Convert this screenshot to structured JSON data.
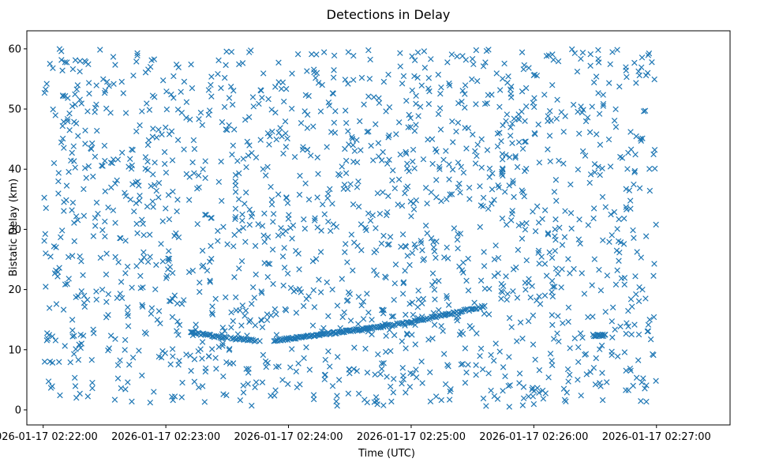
{
  "chart_data": {
    "type": "scatter",
    "title": "Detections in Delay",
    "xlabel": "Time (UTC)",
    "ylabel": "Bistatic Delay (km)",
    "marker": "x",
    "color": "#1f77b4",
    "xlim_seconds": [
      -8,
      336
    ],
    "ylim": [
      -2.5,
      63
    ],
    "xticks": [
      {
        "t": 0,
        "label": "2026-01-17 02:22:00"
      },
      {
        "t": 60,
        "label": "2026-01-17 02:23:00"
      },
      {
        "t": 120,
        "label": "2026-01-17 02:24:00"
      },
      {
        "t": 180,
        "label": "2026-01-17 02:25:00"
      },
      {
        "t": 240,
        "label": "2026-01-17 02:26:00"
      },
      {
        "t": 300,
        "label": "2026-01-17 02:27:00"
      }
    ],
    "yticks": [
      0,
      10,
      20,
      30,
      40,
      50,
      60
    ],
    "x_origin": "2026-01-17 02:22:00",
    "tracks": [
      {
        "t_start": 73,
        "t_end": 90,
        "y_start": 12.8,
        "y_end": 11.9,
        "n": 26
      },
      {
        "t_start": 92,
        "t_end": 104,
        "y_start": 11.9,
        "y_end": 11.5,
        "n": 18
      },
      {
        "t_start": 113,
        "t_end": 165,
        "y_start": 11.5,
        "y_end": 13.8,
        "n": 95
      },
      {
        "t_start": 165,
        "t_end": 180,
        "y_start": 13.8,
        "y_end": 14.6,
        "n": 20
      },
      {
        "t_start": 180,
        "t_end": 216,
        "y_start": 14.6,
        "y_end": 17.2,
        "n": 48
      },
      {
        "t_start": 269,
        "t_end": 275,
        "y_start": 12.4,
        "y_end": 12.4,
        "n": 14
      }
    ],
    "clutter": {
      "t_range": [
        0,
        300
      ],
      "y_range": [
        0.5,
        60
      ],
      "count": 1650,
      "seed": 20260117
    }
  }
}
